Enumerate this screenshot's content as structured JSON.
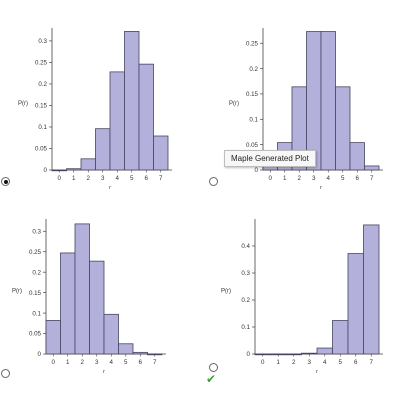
{
  "options": [
    {
      "id": "a",
      "selected": true,
      "correct": false,
      "chart_data": {
        "type": "bar",
        "categories": [
          "0",
          "1",
          "2",
          "3",
          "4",
          "5",
          "6",
          "7"
        ],
        "values": [
          0.0,
          0.003,
          0.026,
          0.096,
          0.228,
          0.322,
          0.246,
          0.079
        ],
        "xlabel": "r",
        "ylabel": "P(r)",
        "ylim": [
          0,
          0.33
        ],
        "yticks": [
          0,
          0.05,
          0.1,
          0.15,
          0.2,
          0.25,
          0.3
        ],
        "ytick_labels": [
          "0",
          "0.05",
          "0.1",
          "0.15",
          "0.2",
          "0.25",
          "0.3"
        ],
        "grid": false
      }
    },
    {
      "id": "b",
      "selected": false,
      "correct": false,
      "chart_data": {
        "type": "bar",
        "categories": [
          "0",
          "1",
          "2",
          "3",
          "4",
          "5",
          "6",
          "7"
        ],
        "values": [
          0.008,
          0.054,
          0.164,
          0.273,
          0.273,
          0.164,
          0.054,
          0.008
        ],
        "xlabel": "r",
        "ylabel": "P(r)",
        "ylim": [
          0,
          0.28
        ],
        "yticks": [
          0,
          0.05,
          0.1,
          0.15,
          0.2,
          0.25
        ],
        "ytick_labels": [
          "0",
          "0.05",
          "0.1",
          "0.15",
          "0.2",
          "0.25"
        ],
        "grid": false
      }
    },
    {
      "id": "c",
      "selected": false,
      "correct": false,
      "chart_data": {
        "type": "bar",
        "categories": [
          "0",
          "1",
          "2",
          "3",
          "4",
          "5",
          "6",
          "7"
        ],
        "values": [
          0.082,
          0.247,
          0.318,
          0.227,
          0.097,
          0.025,
          0.004,
          0.0
        ],
        "xlabel": "r",
        "ylabel": "P(r)",
        "ylim": [
          0,
          0.33
        ],
        "yticks": [
          0,
          0.05,
          0.1,
          0.15,
          0.2,
          0.25,
          0.3
        ],
        "ytick_labels": [
          "0",
          "0.05",
          "0.1",
          "0.15",
          "0.2",
          "0.25",
          "0.3"
        ],
        "grid": false
      }
    },
    {
      "id": "d",
      "selected": false,
      "correct": true,
      "chart_data": {
        "type": "bar",
        "categories": [
          "0",
          "1",
          "2",
          "3",
          "4",
          "5",
          "6",
          "7"
        ],
        "values": [
          0.0,
          0.0,
          0.0,
          0.003,
          0.022,
          0.124,
          0.372,
          0.478
        ],
        "xlabel": "r",
        "ylabel": "P(r)",
        "ylim": [
          0,
          0.5
        ],
        "yticks": [
          0,
          0.1,
          0.2,
          0.3,
          0.4
        ],
        "ytick_labels": [
          "0",
          "0.1",
          "0.2",
          "0.3",
          "0.4"
        ],
        "grid": false
      }
    }
  ],
  "tooltip": {
    "text": "Maple Generated Plot"
  },
  "icons": {
    "correct_mark": "check-icon",
    "correct_color": "#3aa33a",
    "bar_fill": "#b3b1db",
    "bar_stroke": "#454560"
  }
}
